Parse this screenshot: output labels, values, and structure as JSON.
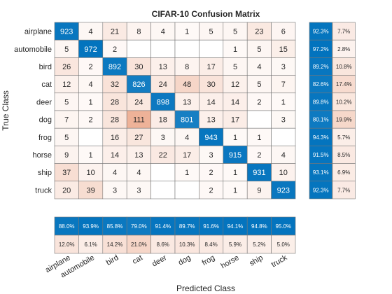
{
  "chart_data": {
    "type": "heatmap",
    "title": "CIFAR-10 Confusion Matrix",
    "xlabel": "Predicted Class",
    "ylabel": "True Class",
    "classes": [
      "airplane",
      "automobile",
      "bird",
      "cat",
      "deer",
      "dog",
      "frog",
      "horse",
      "ship",
      "truck"
    ],
    "matrix": [
      [
        923,
        4,
        21,
        8,
        4,
        1,
        5,
        5,
        23,
        6
      ],
      [
        5,
        972,
        2,
        null,
        null,
        null,
        null,
        1,
        5,
        15
      ],
      [
        26,
        2,
        892,
        30,
        13,
        8,
        17,
        5,
        4,
        3
      ],
      [
        12,
        4,
        32,
        826,
        24,
        48,
        30,
        12,
        5,
        7
      ],
      [
        5,
        1,
        28,
        24,
        898,
        13,
        14,
        14,
        2,
        1
      ],
      [
        7,
        2,
        28,
        111,
        18,
        801,
        13,
        17,
        null,
        3
      ],
      [
        5,
        null,
        16,
        27,
        3,
        4,
        943,
        1,
        1,
        null
      ],
      [
        9,
        1,
        14,
        13,
        22,
        17,
        3,
        915,
        2,
        4
      ],
      [
        37,
        10,
        4,
        4,
        null,
        1,
        2,
        1,
        931,
        10
      ],
      [
        20,
        39,
        3,
        3,
        null,
        null,
        2,
        1,
        9,
        923
      ]
    ],
    "row_summary": {
      "correct": [
        "92.3%",
        "97.2%",
        "89.2%",
        "82.6%",
        "89.8%",
        "80.1%",
        "94.3%",
        "91.5%",
        "93.1%",
        "92.3%"
      ],
      "incorrect": [
        "7.7%",
        "2.8%",
        "10.8%",
        "17.4%",
        "10.2%",
        "19.9%",
        "5.7%",
        "8.5%",
        "6.9%",
        "7.7%"
      ]
    },
    "column_summary": {
      "correct": [
        "88.0%",
        "93.9%",
        "85.8%",
        "79.0%",
        "91.4%",
        "89.7%",
        "91.6%",
        "94.1%",
        "94.8%",
        "95.0%"
      ],
      "incorrect": [
        "12.0%",
        "6.1%",
        "14.2%",
        "21.0%",
        "8.6%",
        "10.3%",
        "8.4%",
        "5.9%",
        "5.2%",
        "5.0%"
      ]
    },
    "colors": {
      "diagonal": "#0072bd",
      "offdiagonal": "#d95319",
      "grid": "#777777",
      "text_dark": "#262626",
      "text_light": "#ffffff"
    }
  }
}
